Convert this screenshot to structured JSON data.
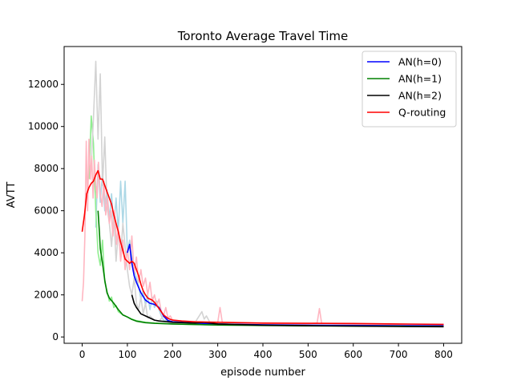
{
  "chart_data": {
    "type": "line",
    "title": "Toronto Average Travel Time",
    "xlabel": "episode number",
    "ylabel": "AVTT",
    "xlim": [
      -40,
      840
    ],
    "ylim": [
      -300,
      13800
    ],
    "xticks": [
      0,
      100,
      200,
      300,
      400,
      500,
      600,
      700,
      800
    ],
    "yticks": [
      0,
      2000,
      4000,
      6000,
      8000,
      10000,
      12000
    ],
    "legend_position": "top-right",
    "grid": false,
    "series": [
      {
        "name": "AN(h=0)",
        "color": "#0000ff",
        "raw_color": "#add8e6",
        "raw": [
          [
            30,
            5200
          ],
          [
            35,
            8200
          ],
          [
            40,
            6400
          ],
          [
            45,
            7800
          ],
          [
            50,
            6000
          ],
          [
            55,
            7000
          ],
          [
            60,
            5600
          ],
          [
            65,
            6800
          ],
          [
            70,
            5200
          ],
          [
            75,
            6600
          ],
          [
            80,
            5000
          ],
          [
            85,
            7400
          ],
          [
            90,
            5400
          ],
          [
            95,
            7400
          ],
          [
            100,
            4000
          ],
          [
            105,
            4600
          ],
          [
            110,
            3800
          ],
          [
            115,
            3200
          ],
          [
            120,
            2800
          ],
          [
            125,
            2400
          ],
          [
            130,
            1800
          ],
          [
            135,
            2200
          ],
          [
            140,
            1500
          ],
          [
            145,
            2000
          ],
          [
            150,
            1300
          ],
          [
            155,
            1900
          ],
          [
            160,
            1400
          ],
          [
            165,
            1700
          ],
          [
            170,
            1300
          ],
          [
            175,
            1000
          ],
          [
            180,
            800
          ],
          [
            200,
            700
          ],
          [
            250,
            650
          ],
          [
            300,
            620
          ],
          [
            400,
            560
          ],
          [
            500,
            540
          ],
          [
            600,
            530
          ],
          [
            700,
            520
          ],
          [
            800,
            510
          ]
        ],
        "smooth": [
          [
            100,
            4000
          ],
          [
            105,
            4400
          ],
          [
            110,
            3500
          ],
          [
            115,
            2900
          ],
          [
            120,
            2600
          ],
          [
            130,
            2100
          ],
          [
            140,
            1750
          ],
          [
            150,
            1600
          ],
          [
            160,
            1550
          ],
          [
            170,
            1400
          ],
          [
            180,
            1000
          ],
          [
            190,
            780
          ],
          [
            200,
            720
          ],
          [
            250,
            660
          ],
          [
            300,
            620
          ],
          [
            400,
            580
          ],
          [
            500,
            560
          ],
          [
            600,
            550
          ],
          [
            700,
            540
          ],
          [
            800,
            530
          ]
        ]
      },
      {
        "name": "AN(h=1)",
        "color": "#008000",
        "raw_color": "#90ee90",
        "raw": [
          [
            15,
            7500
          ],
          [
            20,
            10500
          ],
          [
            25,
            9200
          ],
          [
            30,
            6000
          ],
          [
            35,
            4000
          ],
          [
            40,
            3400
          ],
          [
            45,
            4600
          ],
          [
            50,
            2600
          ],
          [
            55,
            2200
          ],
          [
            60,
            1700
          ],
          [
            65,
            1900
          ],
          [
            70,
            1400
          ],
          [
            75,
            1500
          ],
          [
            80,
            1200
          ],
          [
            90,
            1050
          ],
          [
            100,
            950
          ],
          [
            110,
            850
          ],
          [
            120,
            780
          ],
          [
            140,
            700
          ],
          [
            160,
            660
          ],
          [
            200,
            620
          ],
          [
            250,
            590
          ],
          [
            300,
            570
          ],
          [
            400,
            540
          ],
          [
            500,
            520
          ],
          [
            600,
            510
          ],
          [
            700,
            500
          ],
          [
            800,
            495
          ]
        ],
        "smooth": [
          [
            35,
            6000
          ],
          [
            38,
            5000
          ],
          [
            40,
            4200
          ],
          [
            45,
            3500
          ],
          [
            50,
            2700
          ],
          [
            55,
            2100
          ],
          [
            60,
            1850
          ],
          [
            70,
            1600
          ],
          [
            80,
            1300
          ],
          [
            90,
            1050
          ],
          [
            100,
            950
          ],
          [
            110,
            830
          ],
          [
            120,
            750
          ],
          [
            140,
            680
          ],
          [
            160,
            650
          ],
          [
            200,
            620
          ],
          [
            250,
            590
          ],
          [
            300,
            570
          ],
          [
            400,
            550
          ],
          [
            500,
            530
          ],
          [
            600,
            520
          ],
          [
            700,
            510
          ],
          [
            800,
            500
          ]
        ]
      },
      {
        "name": "AN(h=2)",
        "color": "#000000",
        "raw_color": "#d3d3d3",
        "raw": [
          [
            20,
            8200
          ],
          [
            25,
            10400
          ],
          [
            30,
            13100
          ],
          [
            35,
            9400
          ],
          [
            40,
            12500
          ],
          [
            45,
            7200
          ],
          [
            50,
            9500
          ],
          [
            55,
            6200
          ],
          [
            60,
            5400
          ],
          [
            65,
            4300
          ],
          [
            70,
            5800
          ],
          [
            75,
            3600
          ],
          [
            80,
            5000
          ],
          [
            85,
            3800
          ],
          [
            90,
            5400
          ],
          [
            100,
            3200
          ],
          [
            105,
            2400
          ],
          [
            110,
            2000
          ],
          [
            115,
            2800
          ],
          [
            120,
            1600
          ],
          [
            125,
            1300
          ],
          [
            130,
            1900
          ],
          [
            135,
            1100
          ],
          [
            140,
            1600
          ],
          [
            145,
            900
          ],
          [
            150,
            1000
          ],
          [
            160,
            800
          ],
          [
            170,
            750
          ],
          [
            180,
            1000
          ],
          [
            190,
            700
          ],
          [
            200,
            650
          ],
          [
            250,
            700
          ],
          [
            265,
            1200
          ],
          [
            270,
            850
          ],
          [
            275,
            1000
          ],
          [
            285,
            600
          ],
          [
            300,
            560
          ],
          [
            400,
            540
          ],
          [
            500,
            510
          ],
          [
            600,
            500
          ],
          [
            700,
            490
          ],
          [
            800,
            480
          ]
        ],
        "smooth": [
          [
            110,
            2000
          ],
          [
            115,
            1600
          ],
          [
            120,
            1400
          ],
          [
            125,
            1250
          ],
          [
            130,
            1100
          ],
          [
            140,
            1000
          ],
          [
            150,
            900
          ],
          [
            160,
            800
          ],
          [
            170,
            760
          ],
          [
            180,
            740
          ],
          [
            190,
            720
          ],
          [
            200,
            700
          ],
          [
            250,
            660
          ],
          [
            270,
            700
          ],
          [
            300,
            620
          ],
          [
            400,
            560
          ],
          [
            500,
            540
          ],
          [
            600,
            520
          ],
          [
            700,
            500
          ],
          [
            800,
            490
          ]
        ]
      },
      {
        "name": "Q-routing",
        "color": "#ff0000",
        "raw_color": "#ffb6c1",
        "raw": [
          [
            0,
            1700
          ],
          [
            3,
            2600
          ],
          [
            6,
            4800
          ],
          [
            9,
            9300
          ],
          [
            12,
            6000
          ],
          [
            15,
            9400
          ],
          [
            18,
            7500
          ],
          [
            21,
            8600
          ],
          [
            24,
            6600
          ],
          [
            27,
            8400
          ],
          [
            30,
            7200
          ],
          [
            33,
            6600
          ],
          [
            36,
            8300
          ],
          [
            40,
            6800
          ],
          [
            44,
            6200
          ],
          [
            48,
            7400
          ],
          [
            52,
            5800
          ],
          [
            56,
            6600
          ],
          [
            60,
            5400
          ],
          [
            64,
            6000
          ],
          [
            68,
            4800
          ],
          [
            72,
            6000
          ],
          [
            76,
            4400
          ],
          [
            80,
            5200
          ],
          [
            85,
            3600
          ],
          [
            90,
            4600
          ],
          [
            95,
            3200
          ],
          [
            100,
            4200
          ],
          [
            105,
            3200
          ],
          [
            110,
            4800
          ],
          [
            115,
            3000
          ],
          [
            120,
            3800
          ],
          [
            125,
            2600
          ],
          [
            130,
            3200
          ],
          [
            135,
            2400
          ],
          [
            140,
            2800
          ],
          [
            145,
            2000
          ],
          [
            150,
            2600
          ],
          [
            155,
            1700
          ],
          [
            160,
            2000
          ],
          [
            165,
            1500
          ],
          [
            170,
            1800
          ],
          [
            175,
            1200
          ],
          [
            180,
            1000
          ],
          [
            185,
            1400
          ],
          [
            190,
            900
          ],
          [
            195,
            1000
          ],
          [
            200,
            800
          ],
          [
            250,
            700
          ],
          [
            300,
            680
          ],
          [
            305,
            1400
          ],
          [
            310,
            700
          ],
          [
            400,
            650
          ],
          [
            500,
            630
          ],
          [
            520,
            660
          ],
          [
            525,
            1350
          ],
          [
            530,
            650
          ],
          [
            600,
            620
          ],
          [
            700,
            600
          ],
          [
            800,
            590
          ]
        ],
        "smooth": [
          [
            0,
            5000
          ],
          [
            5,
            5800
          ],
          [
            10,
            6800
          ],
          [
            15,
            7100
          ],
          [
            20,
            7300
          ],
          [
            25,
            7400
          ],
          [
            30,
            7700
          ],
          [
            35,
            7900
          ],
          [
            40,
            7500
          ],
          [
            45,
            7500
          ],
          [
            50,
            7200
          ],
          [
            55,
            6900
          ],
          [
            60,
            6600
          ],
          [
            65,
            6300
          ],
          [
            70,
            5800
          ],
          [
            75,
            5400
          ],
          [
            80,
            5000
          ],
          [
            85,
            4500
          ],
          [
            90,
            4100
          ],
          [
            95,
            3700
          ],
          [
            100,
            3600
          ],
          [
            105,
            3500
          ],
          [
            110,
            3600
          ],
          [
            115,
            3500
          ],
          [
            120,
            3200
          ],
          [
            125,
            2900
          ],
          [
            130,
            2500
          ],
          [
            135,
            2200
          ],
          [
            140,
            2000
          ],
          [
            145,
            1850
          ],
          [
            150,
            1800
          ],
          [
            155,
            1750
          ],
          [
            160,
            1650
          ],
          [
            165,
            1500
          ],
          [
            170,
            1350
          ],
          [
            175,
            1200
          ],
          [
            180,
            1050
          ],
          [
            190,
            880
          ],
          [
            200,
            800
          ],
          [
            220,
            760
          ],
          [
            250,
            720
          ],
          [
            300,
            700
          ],
          [
            350,
            680
          ],
          [
            400,
            660
          ],
          [
            500,
            650
          ],
          [
            600,
            640
          ],
          [
            700,
            620
          ],
          [
            800,
            600
          ]
        ]
      }
    ]
  }
}
